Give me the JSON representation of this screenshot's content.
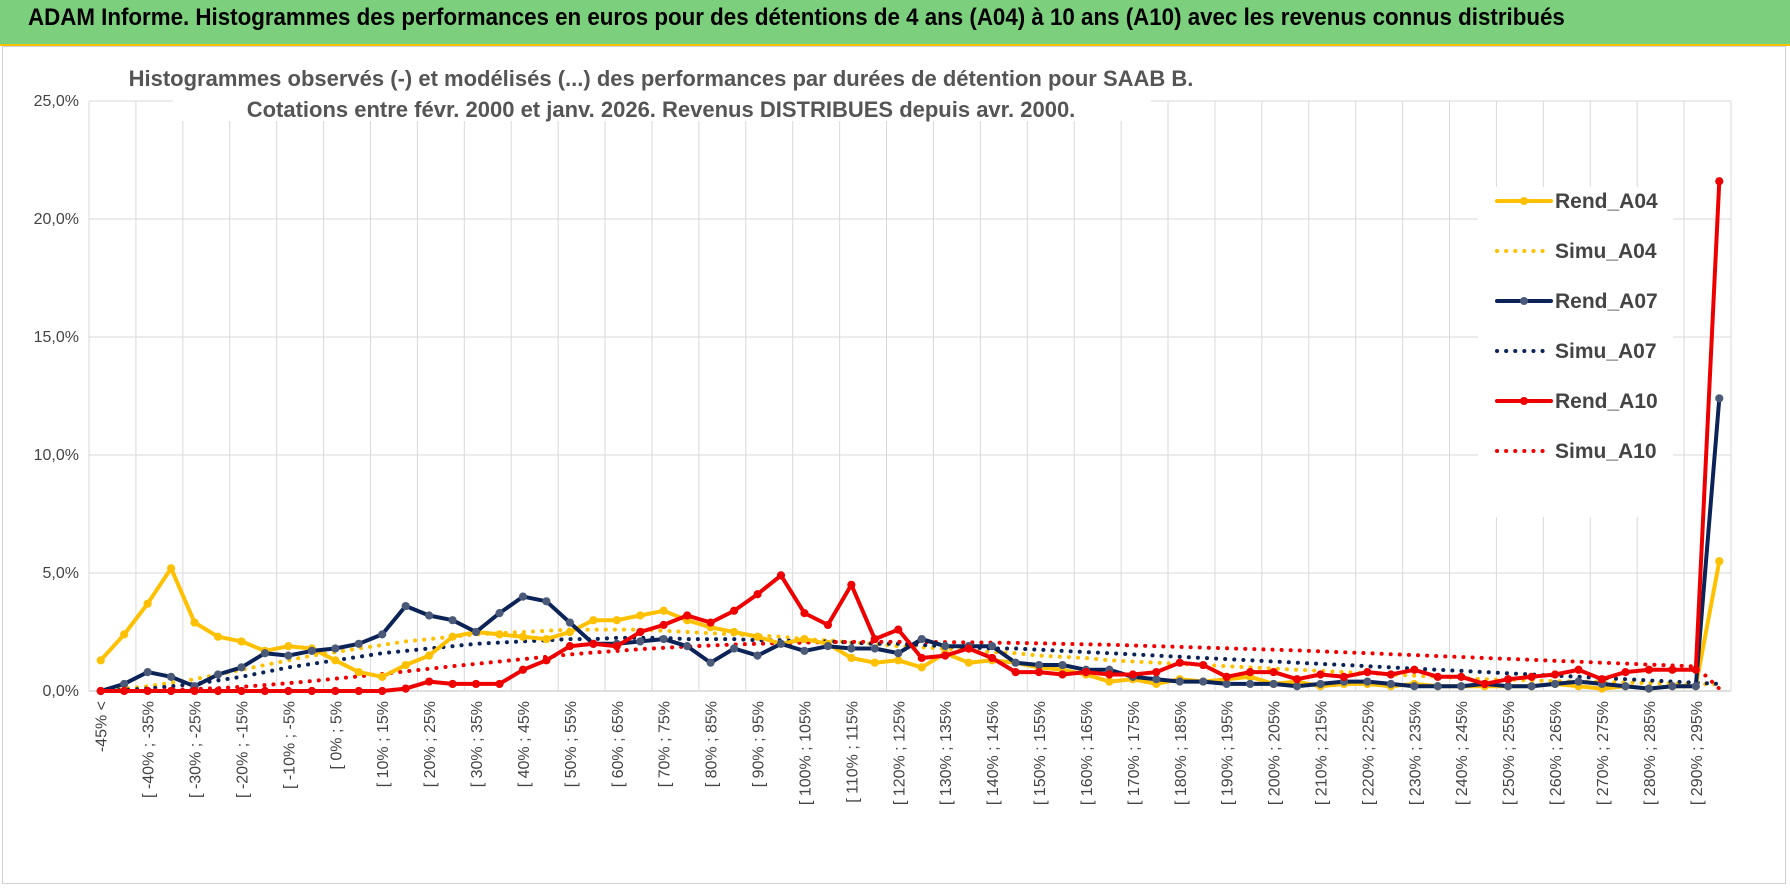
{
  "header": {
    "title": "ADAM Informe. Histogrammes des performances en euros pour des détentions de 4 ans (A04) à 10 ans (A10) avec les revenus connus distribués"
  },
  "chart_data": {
    "type": "line",
    "title_line1": "Histogrammes observés (-) et modélisés (...) des performances par durées de détention pour SAAB B.",
    "title_line2": "Cotations entre févr. 2000 et janv. 2026. Revenus DISTRIBUES depuis avr. 2000.",
    "xlabel": "",
    "ylabel": "",
    "ylim": [
      0,
      25
    ],
    "yticks": [
      "0,0%",
      "5,0%",
      "10,0%",
      "15,0%",
      "20,0%",
      "25,0%"
    ],
    "grid": true,
    "legend_position": "right",
    "tick_labels": [
      "-45% <",
      "[ -40% ; -35%",
      "[ -30% ; -25%",
      "[ -20% ; -15%",
      "[ -10% ; -5%",
      "[ 0% ; 5%",
      "[ 10% ; 15%",
      "[ 20% ; 25%",
      "[ 30% ; 35%",
      "[ 40% ; 45%",
      "[ 50% ; 55%",
      "[ 60% ; 65%",
      "[ 70% ; 75%",
      "[ 80% ; 85%",
      "[ 90% ; 95%",
      "[ 100% ; 105%",
      "[ 110% ; 115%",
      "[ 120% ; 125%",
      "[ 130% ; 135%",
      "[ 140% ; 145%",
      "[ 150% ; 155%",
      "[ 160% ; 165%",
      "[ 170% ; 175%",
      "[ 180% ; 185%",
      "[ 190% ; 195%",
      "[ 200% ; 205%",
      "[ 210% ; 215%",
      "[ 220% ; 225%",
      "[ 230% ; 235%",
      "[ 240% ; 245%",
      "[ 250% ; 255%",
      "[ 260% ; 265%",
      "[ 270% ; 275%",
      "[ 280% ; 285%",
      "[ 290% ; 295%"
    ],
    "n_points": 70,
    "series": [
      {
        "name": "Rend_A04",
        "color": "#ffc000",
        "style": "solid",
        "markers": true,
        "values": [
          1.3,
          2.4,
          3.7,
          5.2,
          2.9,
          2.3,
          2.1,
          1.7,
          1.9,
          1.8,
          1.3,
          0.8,
          0.6,
          1.1,
          1.5,
          2.3,
          2.5,
          2.4,
          2.3,
          2.2,
          2.5,
          3.0,
          3.0,
          3.2,
          3.4,
          3.0,
          2.7,
          2.5,
          2.3,
          2.0,
          2.2,
          2.0,
          1.4,
          1.2,
          1.3,
          1.0,
          1.6,
          1.2,
          1.3,
          1.2,
          1.0,
          0.9,
          0.7,
          0.4,
          0.5,
          0.3,
          0.5,
          0.4,
          0.5,
          0.6,
          0.3,
          0.4,
          0.2,
          0.3,
          0.3,
          0.2,
          0.3,
          0.2,
          0.2,
          0.2,
          0.2,
          0.2,
          0.3,
          0.2,
          0.1,
          0.2,
          0.1,
          0.2,
          0.2,
          5.5
        ]
      },
      {
        "name": "Simu_A04",
        "color": "#ffc000",
        "style": "dotted",
        "markers": false,
        "values": [
          0.05,
          0.1,
          0.2,
          0.35,
          0.5,
          0.7,
          0.9,
          1.1,
          1.3,
          1.5,
          1.65,
          1.8,
          1.95,
          2.1,
          2.2,
          2.3,
          2.4,
          2.45,
          2.5,
          2.55,
          2.6,
          2.6,
          2.6,
          2.6,
          2.55,
          2.5,
          2.45,
          2.4,
          2.35,
          2.3,
          2.2,
          2.15,
          2.05,
          2.0,
          1.9,
          1.85,
          1.8,
          1.7,
          1.65,
          1.6,
          1.5,
          1.45,
          1.4,
          1.3,
          1.25,
          1.2,
          1.15,
          1.1,
          1.05,
          1.0,
          0.95,
          0.9,
          0.85,
          0.8,
          0.75,
          0.7,
          0.65,
          0.6,
          0.55,
          0.5,
          0.48,
          0.45,
          0.42,
          0.4,
          0.38,
          0.36,
          0.34,
          0.32,
          0.3,
          0.28
        ]
      },
      {
        "name": "Rend_A07",
        "color": "#0c2357",
        "style": "solid",
        "markers": true,
        "values": [
          0.0,
          0.3,
          0.8,
          0.6,
          0.2,
          0.7,
          1.0,
          1.6,
          1.5,
          1.7,
          1.8,
          2.0,
          2.4,
          3.6,
          3.2,
          3.0,
          2.5,
          3.3,
          4.0,
          3.8,
          2.9,
          2.0,
          2.0,
          2.1,
          2.2,
          1.9,
          1.2,
          1.8,
          1.5,
          2.0,
          1.7,
          1.9,
          1.8,
          1.8,
          1.6,
          2.2,
          1.9,
          1.9,
          1.9,
          1.2,
          1.1,
          1.1,
          0.9,
          0.9,
          0.6,
          0.5,
          0.4,
          0.4,
          0.3,
          0.3,
          0.3,
          0.2,
          0.3,
          0.4,
          0.4,
          0.3,
          0.2,
          0.2,
          0.2,
          0.3,
          0.2,
          0.2,
          0.3,
          0.4,
          0.3,
          0.2,
          0.1,
          0.2,
          0.2,
          12.4
        ]
      },
      {
        "name": "Simu_A07",
        "color": "#0c2357",
        "style": "dotted",
        "markers": false,
        "values": [
          0.0,
          0.05,
          0.1,
          0.2,
          0.3,
          0.45,
          0.6,
          0.8,
          1.0,
          1.15,
          1.3,
          1.45,
          1.6,
          1.7,
          1.8,
          1.9,
          2.0,
          2.05,
          2.1,
          2.15,
          2.2,
          2.2,
          2.25,
          2.25,
          2.25,
          2.2,
          2.2,
          2.2,
          2.15,
          2.15,
          2.1,
          2.1,
          2.05,
          2.0,
          2.0,
          1.95,
          1.9,
          1.85,
          1.8,
          1.8,
          1.75,
          1.7,
          1.65,
          1.6,
          1.55,
          1.5,
          1.45,
          1.4,
          1.35,
          1.3,
          1.25,
          1.2,
          1.15,
          1.1,
          1.05,
          1.0,
          0.95,
          0.9,
          0.85,
          0.8,
          0.75,
          0.7,
          0.65,
          0.6,
          0.55,
          0.5,
          0.45,
          0.4,
          0.35,
          0.3
        ]
      },
      {
        "name": "Rend_A10",
        "color": "#ee0000",
        "style": "solid",
        "markers": true,
        "values": [
          0.0,
          0.0,
          0.0,
          0.0,
          0.0,
          0.0,
          0.0,
          0.0,
          0.0,
          0.0,
          0.0,
          0.0,
          0.0,
          0.1,
          0.4,
          0.3,
          0.3,
          0.3,
          0.9,
          1.3,
          1.9,
          2.0,
          1.9,
          2.5,
          2.8,
          3.2,
          2.9,
          3.4,
          4.1,
          4.9,
          3.3,
          2.8,
          4.5,
          2.2,
          2.6,
          1.4,
          1.5,
          1.8,
          1.4,
          0.8,
          0.8,
          0.7,
          0.8,
          0.7,
          0.7,
          0.8,
          1.2,
          1.1,
          0.6,
          0.8,
          0.8,
          0.5,
          0.7,
          0.6,
          0.8,
          0.7,
          0.9,
          0.6,
          0.6,
          0.3,
          0.5,
          0.6,
          0.7,
          0.9,
          0.5,
          0.8,
          0.9,
          0.9,
          0.9,
          21.6
        ]
      },
      {
        "name": "Simu_A10",
        "color": "#ee0000",
        "style": "dotted",
        "markers": false,
        "values": [
          0.0,
          0.0,
          0.02,
          0.05,
          0.08,
          0.12,
          0.18,
          0.25,
          0.33,
          0.42,
          0.52,
          0.62,
          0.72,
          0.83,
          0.94,
          1.05,
          1.15,
          1.25,
          1.35,
          1.45,
          1.55,
          1.63,
          1.7,
          1.77,
          1.83,
          1.88,
          1.93,
          1.97,
          2.0,
          2.03,
          2.05,
          2.07,
          2.08,
          2.08,
          2.08,
          2.08,
          2.07,
          2.06,
          2.05,
          2.04,
          2.02,
          2.0,
          1.98,
          1.96,
          1.93,
          1.9,
          1.87,
          1.84,
          1.81,
          1.78,
          1.75,
          1.72,
          1.68,
          1.64,
          1.6,
          1.56,
          1.52,
          1.48,
          1.44,
          1.4,
          1.36,
          1.32,
          1.28,
          1.24,
          1.2,
          1.16,
          1.12,
          1.08,
          1.04,
          0.1
        ]
      }
    ]
  }
}
